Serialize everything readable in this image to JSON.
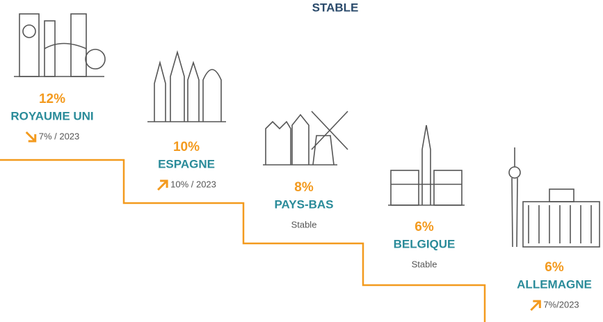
{
  "stable_header": "STABLE",
  "items": [
    {
      "share": "12%",
      "country": "ROYAUME UNI",
      "trend": "7% / 2023",
      "direction": "down"
    },
    {
      "share": "10%",
      "country": "ESPAGNE",
      "trend": "10% / 2023",
      "direction": "up"
    },
    {
      "share": "8%",
      "country": "PAYS-BAS",
      "trend": "Stable",
      "direction": "none"
    },
    {
      "share": "6%",
      "country": "BELGIQUE",
      "trend": "Stable",
      "direction": "none"
    },
    {
      "share": "6%",
      "country": "ALLEMAGNE",
      "trend": "7%/2023",
      "direction": "up"
    }
  ]
}
